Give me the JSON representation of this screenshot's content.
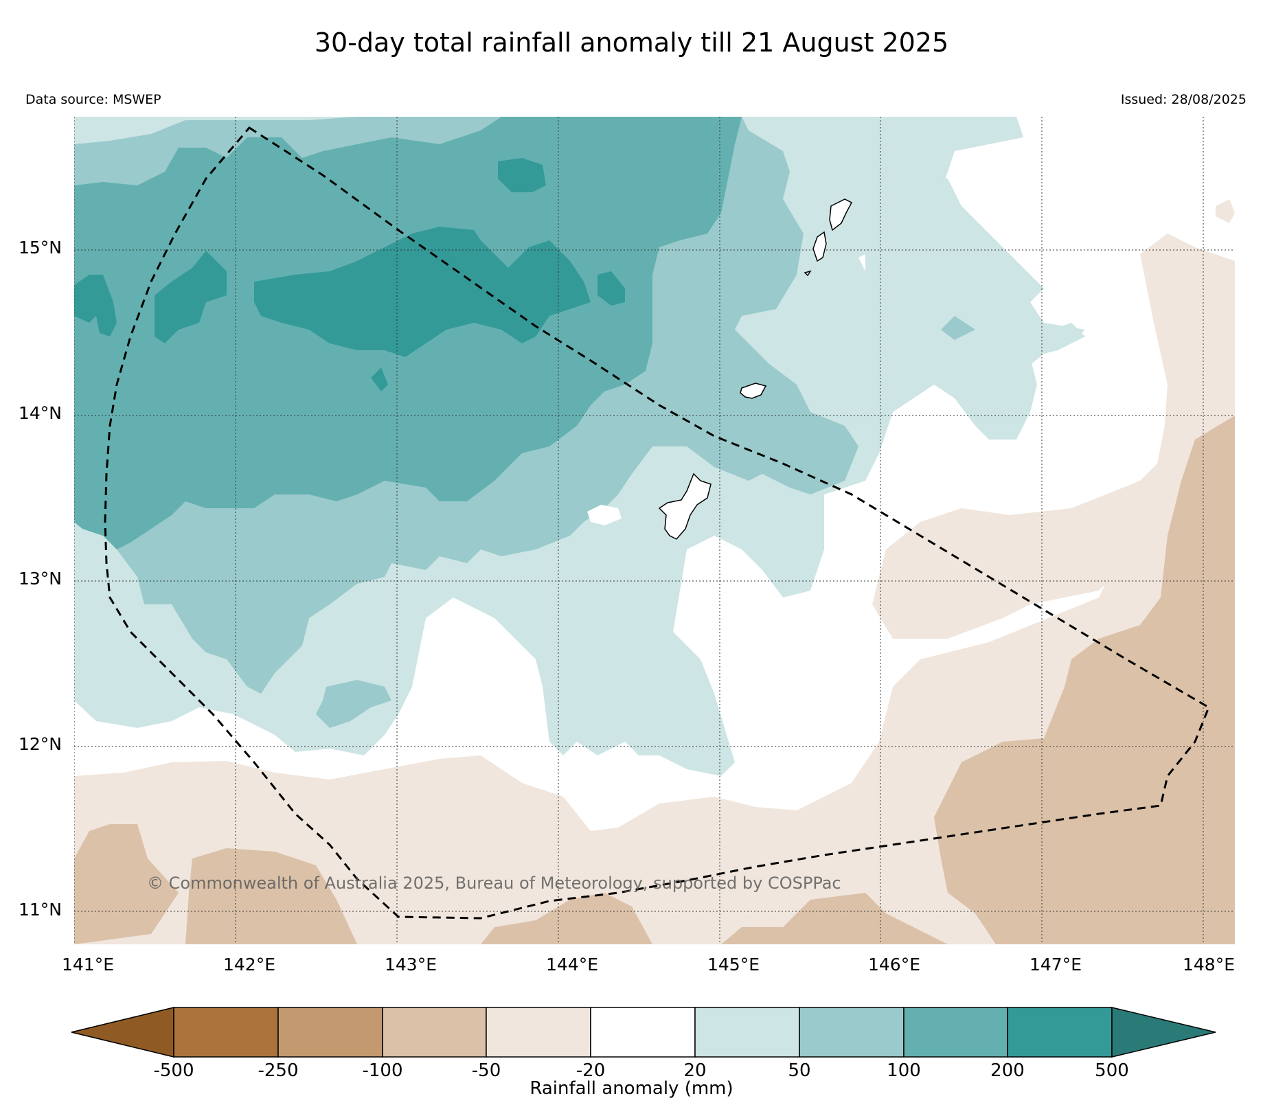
{
  "title": "30-day total rainfall anomaly till 21 August 2025",
  "data_source": "Data source: MSWEP",
  "issued": "Issued: 28/08/2025",
  "copyright": "© Commonwealth of Australia 2025, Bureau of Meteorology, supported by COSPPac",
  "map": {
    "lat_labels": [
      "15°N",
      "14°N",
      "13°N",
      "12°N",
      "11°N"
    ],
    "lon_labels": [
      "141°E",
      "142°E",
      "143°E",
      "144°E",
      "145°E",
      "146°E",
      "147°E",
      "148°E"
    ],
    "lat_range": [
      10.8,
      15.8
    ],
    "lon_range": [
      141,
      148.2
    ]
  },
  "colorbar": {
    "label": "Rainfall anomaly (mm)",
    "ticks": [
      "-500",
      "-250",
      "-100",
      "-50",
      "-20",
      "20",
      "50",
      "100",
      "200",
      "500"
    ],
    "colors": {
      "extend_low": "#8f5a24",
      "-500_-250": "#ab743d",
      "-250_-100": "#c39a70",
      "-100_-50": "#dbc1a8",
      "-50_-20": "#f0e6dd",
      "-20_20": "#ffffff",
      "20_50": "#cde5e4",
      "50_100": "#9acacb",
      "100_200": "#64b0b0",
      "200_500": "#339a98",
      "extend_high": "#2a7a78"
    }
  }
}
